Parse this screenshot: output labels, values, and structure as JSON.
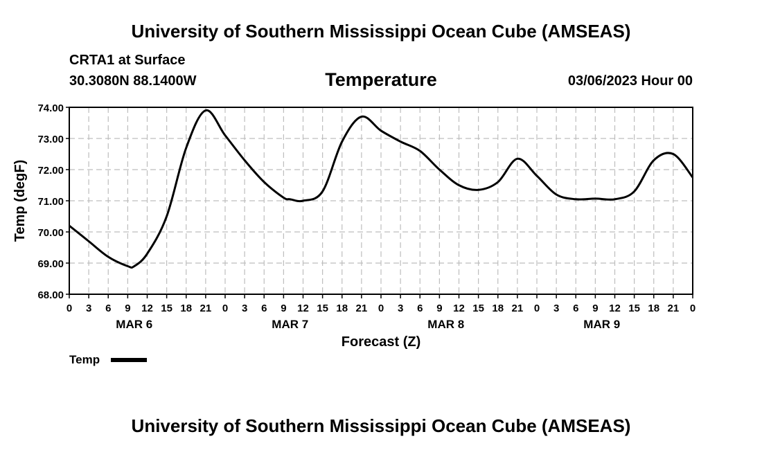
{
  "header": {
    "title": "University of Southern Mississippi Ocean Cube (AMSEAS)",
    "station": "CRTA1 at Surface",
    "coords": "30.3080N  88.1400W",
    "parameter": "Temperature",
    "date_hour": "03/06/2023 Hour 00"
  },
  "footer": {
    "title": "University of Southern Mississippi Ocean Cube (AMSEAS)"
  },
  "chart_data": {
    "type": "line",
    "title": "Temperature",
    "xlabel": "Forecast (Z)",
    "ylabel": "Temp (degF)",
    "ylim": [
      68.0,
      74.0
    ],
    "xlim": [
      0,
      96
    ],
    "y_ticks": [
      "74.00",
      "73.00",
      "72.00",
      "71.00",
      "70.00",
      "69.00",
      "68.00"
    ],
    "x_tick_labels": [
      "0",
      "3",
      "6",
      "9",
      "12",
      "15",
      "18",
      "21",
      "0",
      "3",
      "6",
      "9",
      "12",
      "15",
      "18",
      "21",
      "0",
      "3",
      "6",
      "9",
      "12",
      "15",
      "18",
      "21",
      "0",
      "3",
      "6",
      "9",
      "12",
      "15",
      "18",
      "21",
      "0"
    ],
    "day_labels": [
      "MAR 6",
      "MAR 7",
      "MAR 8",
      "MAR 9"
    ],
    "grid": true,
    "legend": {
      "label": "Temp",
      "placement": "bottom-left"
    },
    "series": [
      {
        "name": "Temp",
        "x": [
          0,
          3,
          6,
          9,
          10,
          12,
          15,
          18,
          21,
          24,
          27,
          30,
          33,
          34,
          36,
          39,
          42,
          45,
          48,
          51,
          54,
          57,
          60,
          63,
          66,
          69,
          72,
          75,
          78,
          81,
          84,
          87,
          90,
          93,
          96
        ],
        "values": [
          70.2,
          69.7,
          69.2,
          68.9,
          68.9,
          69.3,
          70.5,
          72.7,
          73.9,
          73.1,
          72.3,
          71.6,
          71.1,
          71.05,
          71.0,
          71.3,
          72.9,
          73.7,
          73.25,
          72.9,
          72.6,
          72.0,
          71.5,
          71.35,
          71.6,
          72.35,
          71.8,
          71.2,
          71.05,
          71.07,
          71.05,
          71.3,
          72.3,
          72.5,
          71.75
        ]
      }
    ]
  }
}
